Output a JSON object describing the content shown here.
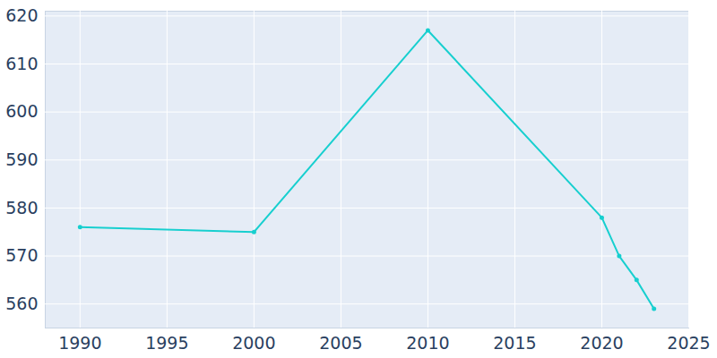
{
  "chart_data": {
    "type": "line",
    "x": [
      1990,
      2000,
      2010,
      2020,
      2021,
      2022,
      2023
    ],
    "values": [
      576,
      575,
      617,
      578,
      570,
      565,
      559
    ],
    "color": "#17cfcf",
    "marker": "circle",
    "xlim": [
      1988,
      2025
    ],
    "xticks": [
      1990,
      1995,
      2000,
      2005,
      2010,
      2015,
      2020,
      2025
    ],
    "ylim": [
      555,
      621
    ],
    "yticks": [
      560,
      570,
      580,
      590,
      600,
      610,
      620
    ],
    "grid": true
  }
}
